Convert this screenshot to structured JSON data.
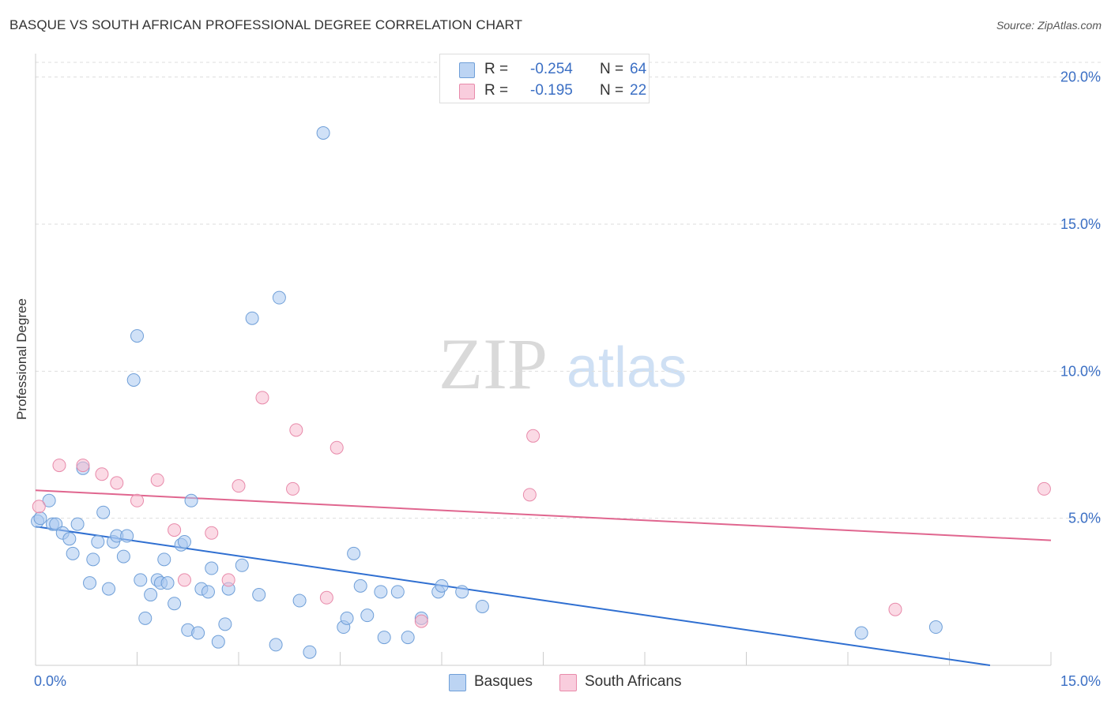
{
  "title": "BASQUE VS SOUTH AFRICAN PROFESSIONAL DEGREE CORRELATION CHART",
  "source": "Source: ZipAtlas.com",
  "watermark": {
    "zip": "ZIP",
    "atlas": "atlas"
  },
  "legend_top": {
    "r_label": "R =",
    "n_label": "N =",
    "rows": [
      {
        "r": "-0.254",
        "n": "64"
      },
      {
        "r": "-0.195",
        "n": "22"
      }
    ]
  },
  "legend_bottom": [
    "Basques",
    "South Africans"
  ],
  "colors": {
    "basques_fill": "#a9c8f0",
    "basques_stroke": "#6f9fd8",
    "basques_line": "#2f6fd1",
    "south_fill": "#f7bcd0",
    "south_stroke": "#e88aaa",
    "south_line": "#e0668f",
    "tick_label": "#3b6fc4",
    "grid": "#dddddd"
  },
  "chart_data": {
    "type": "scatter",
    "title": "BASQUE VS SOUTH AFRICAN PROFESSIONAL DEGREE CORRELATION CHART",
    "xlabel": "",
    "ylabel": "Professional Degree",
    "xlim": [
      0,
      15
    ],
    "ylim": [
      0,
      20.5
    ],
    "x_ticks": [
      0,
      15
    ],
    "x_tick_labels": [
      "0.0%",
      "15.0%"
    ],
    "y_ticks": [
      5,
      10,
      15,
      20
    ],
    "y_tick_labels": [
      "5.0%",
      "10.0%",
      "15.0%",
      "20.0%"
    ],
    "grid": true,
    "legend_position": "top-center",
    "series": [
      {
        "name": "Basques",
        "points": [
          [
            0.03,
            4.9
          ],
          [
            0.07,
            5.0
          ],
          [
            0.2,
            5.6
          ],
          [
            0.25,
            4.8
          ],
          [
            0.3,
            4.8
          ],
          [
            0.4,
            4.5
          ],
          [
            0.5,
            4.3
          ],
          [
            0.55,
            3.8
          ],
          [
            0.62,
            4.8
          ],
          [
            0.7,
            6.7
          ],
          [
            0.8,
            2.8
          ],
          [
            0.85,
            3.6
          ],
          [
            0.92,
            4.2
          ],
          [
            1.0,
            5.2
          ],
          [
            1.08,
            2.6
          ],
          [
            1.15,
            4.2
          ],
          [
            1.2,
            4.4
          ],
          [
            1.3,
            3.7
          ],
          [
            1.35,
            4.4
          ],
          [
            1.5,
            11.2
          ],
          [
            1.45,
            9.7
          ],
          [
            1.55,
            2.9
          ],
          [
            1.62,
            1.6
          ],
          [
            1.7,
            2.4
          ],
          [
            1.8,
            2.9
          ],
          [
            1.85,
            2.8
          ],
          [
            1.9,
            3.6
          ],
          [
            1.95,
            2.8
          ],
          [
            2.05,
            2.1
          ],
          [
            2.15,
            4.1
          ],
          [
            2.2,
            4.2
          ],
          [
            2.25,
            1.2
          ],
          [
            2.3,
            5.6
          ],
          [
            2.4,
            1.1
          ],
          [
            2.45,
            2.6
          ],
          [
            2.55,
            2.5
          ],
          [
            2.6,
            3.3
          ],
          [
            2.7,
            0.8
          ],
          [
            2.8,
            1.4
          ],
          [
            2.85,
            2.6
          ],
          [
            3.05,
            3.4
          ],
          [
            3.2,
            11.8
          ],
          [
            3.3,
            2.4
          ],
          [
            3.55,
            0.7
          ],
          [
            3.6,
            12.5
          ],
          [
            3.9,
            2.2
          ],
          [
            4.05,
            0.45
          ],
          [
            4.25,
            18.1
          ],
          [
            4.55,
            1.3
          ],
          [
            4.6,
            1.6
          ],
          [
            4.7,
            3.8
          ],
          [
            4.8,
            2.7
          ],
          [
            4.9,
            1.7
          ],
          [
            5.1,
            2.5
          ],
          [
            5.15,
            0.95
          ],
          [
            5.35,
            2.5
          ],
          [
            5.5,
            0.95
          ],
          [
            5.7,
            1.6
          ],
          [
            5.95,
            2.5
          ],
          [
            6.0,
            2.7
          ],
          [
            6.3,
            2.5
          ],
          [
            6.6,
            2.0
          ],
          [
            12.2,
            1.1
          ],
          [
            13.3,
            1.3
          ]
        ]
      },
      {
        "name": "South Africans",
        "points": [
          [
            0.05,
            5.4
          ],
          [
            0.35,
            6.8
          ],
          [
            0.7,
            6.8
          ],
          [
            0.98,
            6.5
          ],
          [
            1.2,
            6.2
          ],
          [
            1.5,
            5.6
          ],
          [
            1.8,
            6.3
          ],
          [
            2.05,
            4.6
          ],
          [
            2.2,
            2.9
          ],
          [
            2.6,
            4.5
          ],
          [
            2.85,
            2.9
          ],
          [
            3.0,
            6.1
          ],
          [
            3.35,
            9.1
          ],
          [
            3.8,
            6.0
          ],
          [
            3.85,
            8.0
          ],
          [
            4.3,
            2.3
          ],
          [
            4.45,
            7.4
          ],
          [
            5.7,
            1.5
          ],
          [
            7.3,
            5.8
          ],
          [
            7.35,
            7.8
          ],
          [
            12.7,
            1.9
          ],
          [
            14.9,
            6.0
          ]
        ]
      }
    ],
    "trend_lines": [
      {
        "name": "Basques",
        "x": [
          0,
          14.1
        ],
        "y": [
          4.72,
          0
        ]
      },
      {
        "name": "South Africans",
        "x": [
          0,
          15
        ],
        "y": [
          5.95,
          4.25
        ]
      }
    ]
  }
}
